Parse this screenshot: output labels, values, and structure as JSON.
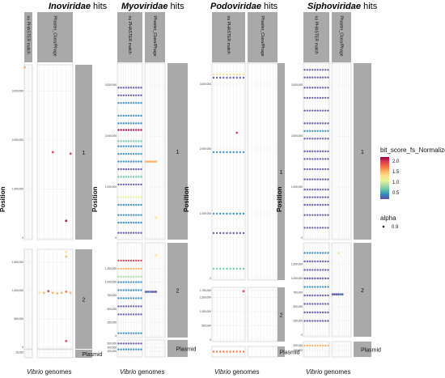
{
  "figure": {
    "titles": [
      {
        "italic": "Inoviridae",
        "rest": " hits"
      },
      {
        "italic": "Myoviridae",
        "rest": " hits"
      },
      {
        "italic": "Podoviridae",
        "rest": " hits"
      },
      {
        "italic": "Siphoviridae",
        "rest": " hits"
      }
    ],
    "ylabel": "Position",
    "xlabel_italic": "Vibrio",
    "xlabel_rest": " genomes",
    "column_strips": [
      "no PHASTER match",
      "Phaster_Class/Phage"
    ],
    "row_strips": [
      "1",
      "2",
      "Plasmid"
    ]
  },
  "legend": {
    "color_title": "bit_score_fs_Normalized",
    "color_ticks": [
      "2.0",
      "1.5",
      "1.0",
      "0.5"
    ],
    "alpha_title": "alpha",
    "alpha_value": "0.9"
  },
  "colors": {
    "strip": "#a9a9a9",
    "scale": [
      "#5e4fa2",
      "#3288bd",
      "#66c2a5",
      "#abdda4",
      "#e6f598",
      "#fee08b",
      "#fdae61",
      "#f46d43",
      "#d53e4f",
      "#9e0142"
    ]
  },
  "chart_data": [
    {
      "type": "scatter",
      "title": "Inoviridae hits",
      "xlabel": "Vibrio genomes",
      "ylabel": "Position",
      "row_1": {
        "ylim": [
          0,
          3500000
        ],
        "yticks": [
          "0",
          "1,000,000",
          "2,000,000",
          "3,000,000"
        ],
        "no_match": [
          {
            "g": 1,
            "y": 3480000,
            "c": 1.6
          }
        ],
        "phaster": [
          {
            "g": 4,
            "y": 1750000,
            "c": 2.1
          },
          {
            "g": 8,
            "y": 1720000,
            "c": 2.1
          },
          {
            "g": 7,
            "y": 350000,
            "c": 2.2
          }
        ]
      },
      "row_2": {
        "ylim": [
          0,
          1700000
        ],
        "yticks": [
          "0",
          "500,000",
          "1,000,000",
          "1,500,000"
        ],
        "no_match": [],
        "phaster": [
          {
            "g": 1,
            "y": 960000,
            "c": 1.5
          },
          {
            "g": 2,
            "y": 960000,
            "c": 1.6
          },
          {
            "g": 3,
            "y": 990000,
            "c": 2.0
          },
          {
            "g": 4,
            "y": 960000,
            "c": 1.7
          },
          {
            "g": 5,
            "y": 950000,
            "c": 1.6
          },
          {
            "g": 6,
            "y": 960000,
            "c": 1.7
          },
          {
            "g": 7,
            "y": 980000,
            "c": 1.8
          },
          {
            "g": 8,
            "y": 960000,
            "c": 1.6
          },
          {
            "g": 7,
            "y": 1680000,
            "c": 1.5
          },
          {
            "g": 7,
            "y": 1600000,
            "c": 1.6
          },
          {
            "g": 7,
            "y": 110000,
            "c": 2.0
          }
        ]
      },
      "row_3": {
        "ylim": [
          0,
          20000
        ],
        "yticks": [
          "15,000"
        ]
      },
      "genomes": 8
    },
    {
      "type": "scatter",
      "title": "Myoviridae hits",
      "xlabel": "Vibrio genomes",
      "ylabel": "Position",
      "row_1": {
        "ylim": [
          0,
          3400000
        ],
        "yticks": [
          "0",
          "1,000,000",
          "2,000,000",
          "3,000,000"
        ],
        "bands_no_match": [
          [
            2950000,
            0.35
          ],
          [
            2800000,
            0.4
          ],
          [
            2650000,
            0.55
          ],
          [
            2400000,
            0.6
          ],
          [
            2250000,
            0.5
          ],
          [
            2120000,
            2.2
          ],
          [
            1900000,
            0.7
          ],
          [
            1800000,
            0.45
          ],
          [
            1650000,
            0.55
          ],
          [
            1500000,
            0.45
          ],
          [
            1350000,
            0.4
          ],
          [
            1200000,
            0.7
          ],
          [
            1050000,
            0.35
          ],
          [
            800000,
            1.1
          ],
          [
            650000,
            0.6
          ],
          [
            450000,
            0.45
          ],
          [
            300000,
            0.5
          ],
          [
            100000,
            0.35
          ]
        ],
        "phaster": [
          {
            "g": 1,
            "y": 1500000,
            "c": 1.6
          },
          {
            "g": 2,
            "y": 1500000,
            "c": 1.7
          },
          {
            "g": 3,
            "y": 1500000,
            "c": 1.6
          },
          {
            "g": 4,
            "y": 1500000,
            "c": 1.7
          },
          {
            "g": 5,
            "y": 1500000,
            "c": 1.6
          },
          {
            "g": 6,
            "y": 1500000,
            "c": 1.6
          },
          {
            "g": 6,
            "y": 400000,
            "c": 1.5
          }
        ]
      },
      "row_2": {
        "ylim": [
          0,
          1700000
        ],
        "yticks": [
          "0",
          "250,000",
          "500,000",
          "750,000",
          "1,000,000",
          "1,250,000"
        ],
        "bands_no_match": [
          [
            1400000,
            2.0
          ],
          [
            1250000,
            1.6
          ],
          [
            1100000,
            1.0
          ],
          [
            1000000,
            0.6
          ],
          [
            850000,
            0.5
          ],
          [
            700000,
            0.45
          ],
          [
            550000,
            0.4
          ],
          [
            400000,
            0.35
          ],
          [
            50000,
            0.6
          ]
        ],
        "phaster": [
          {
            "g": 1,
            "y": 820000,
            "c": 0.4
          },
          {
            "g": 2,
            "y": 820000,
            "c": 0.4
          },
          {
            "g": 3,
            "y": 820000,
            "c": 0.5
          },
          {
            "g": 4,
            "y": 820000,
            "c": 0.4
          },
          {
            "g": 5,
            "y": 820000,
            "c": 0.4
          },
          {
            "g": 6,
            "y": 820000,
            "c": 0.4
          },
          {
            "g": 6,
            "y": 1500000,
            "c": 1.3
          }
        ]
      },
      "row_3": {
        "ylim": [
          0,
          350000
        ],
        "yticks": [
          "100,000",
          "200,000",
          "300,000"
        ],
        "bands_no_match": [
          [
            300000,
            0.4
          ],
          [
            150000,
            0.5
          ]
        ]
      },
      "genomes": 10
    },
    {
      "type": "scatter",
      "title": "Podoviridae hits",
      "xlabel": "Vibrio genomes",
      "ylabel": "Position",
      "row_1": {
        "ylim": [
          0,
          3300000
        ],
        "yticks": [
          "0",
          "1,000,000",
          "2,000,000",
          "3,000,000"
        ],
        "bands_no_match": [
          [
            3150000,
            1.4
          ],
          [
            3100000,
            0.4
          ],
          [
            1950000,
            0.5
          ],
          [
            1000000,
            0.6
          ],
          [
            700000,
            0.4
          ],
          [
            150000,
            0.7
          ]
        ],
        "extra": [
          {
            "g": 8,
            "y": 2250000,
            "c": 2.0
          }
        ],
        "phaster": []
      },
      "row_2": {
        "ylim": [
          0,
          1800000
        ],
        "yticks": [
          "0",
          "500,000",
          "1,000,000",
          "1,500,000",
          "1,750,000"
        ],
        "extra": [
          {
            "g": 10,
            "y": 1720000,
            "c": 2.1
          }
        ],
        "phaster": []
      },
      "row_3": {
        "ylim": [
          0,
          80000
        ],
        "yticks": [],
        "bands_no_match": [
          [
            40000,
            1.8
          ]
        ]
      },
      "genomes": 10
    },
    {
      "type": "scatter",
      "title": "Siphoviridae hits",
      "xlabel": "Vibrio genomes",
      "ylabel": "Position",
      "row_1": {
        "ylim": [
          0,
          3400000
        ],
        "yticks": [
          "0",
          "1,000,000",
          "2,000,000",
          "3,000,000"
        ],
        "bands_no_match": [
          [
            3300000,
            0.3
          ],
          [
            3150000,
            0.4
          ],
          [
            2950000,
            0.35
          ],
          [
            2750000,
            0.4
          ],
          [
            2500000,
            0.3
          ],
          [
            2250000,
            0.35
          ],
          [
            2100000,
            0.45
          ],
          [
            1950000,
            0.3
          ],
          [
            1700000,
            0.35
          ],
          [
            1550000,
            0.4
          ],
          [
            1350000,
            0.3
          ],
          [
            1150000,
            0.35
          ],
          [
            950000,
            0.4
          ],
          [
            800000,
            0.3
          ],
          [
            650000,
            0.35
          ],
          [
            450000,
            0.3
          ],
          [
            200000,
            0.35
          ]
        ],
        "phaster": []
      },
      "row_2": {
        "ylim": [
          0,
          1600000
        ],
        "yticks": [
          "0",
          "250,000",
          "500,000",
          "750,000",
          "1,000,000",
          "1,250,000"
        ],
        "bands_no_match": [
          [
            1450000,
            0.5
          ],
          [
            1300000,
            0.4
          ],
          [
            1150000,
            0.35
          ],
          [
            1000000,
            0.4
          ],
          [
            850000,
            0.45
          ],
          [
            700000,
            0.35
          ],
          [
            550000,
            0.4
          ],
          [
            400000,
            0.3
          ],
          [
            250000,
            0.35
          ]
        ],
        "phaster": [
          {
            "g": 1,
            "y": 720000,
            "c": 0.4
          },
          {
            "g": 2,
            "y": 720000,
            "c": 0.4
          },
          {
            "g": 3,
            "y": 720000,
            "c": 0.4
          },
          {
            "g": 4,
            "y": 720000,
            "c": 0.4
          },
          {
            "g": 5,
            "y": 720000,
            "c": 0.5
          },
          {
            "g": 6,
            "y": 720000,
            "c": 0.4
          },
          {
            "g": 4,
            "y": 1450000,
            "c": 1.5
          }
        ]
      },
      "row_3": {
        "ylim": [
          0,
          250000
        ],
        "yticks": [
          "100,000",
          "200,000"
        ],
        "bands_no_match": [
          [
            200000,
            1.6
          ]
        ]
      },
      "genomes": 10
    }
  ]
}
